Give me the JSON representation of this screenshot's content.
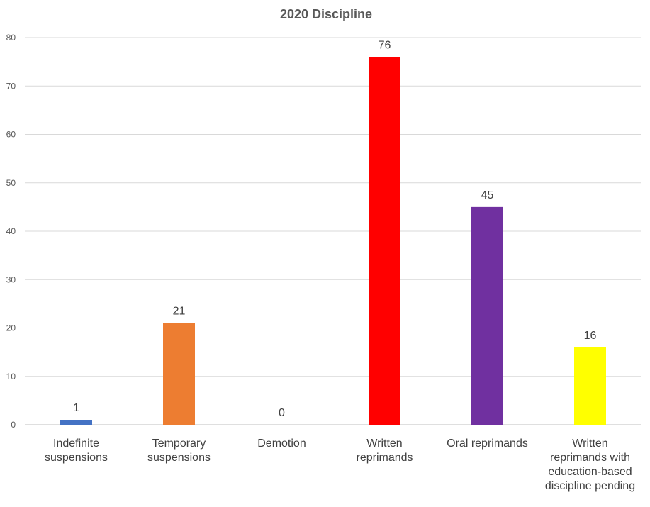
{
  "chart_data": {
    "type": "bar",
    "title": "2020 Discipline",
    "xlabel": "",
    "ylabel": "",
    "ylim": [
      0,
      80
    ],
    "yticks": [
      0,
      10,
      20,
      30,
      40,
      50,
      60,
      70,
      80
    ],
    "grid": true,
    "legend": "none",
    "categories": [
      [
        "Indefinite",
        "suspensions"
      ],
      [
        "Temporary",
        "suspensions"
      ],
      [
        "Demotion"
      ],
      [
        "Written",
        "reprimands"
      ],
      [
        "Oral reprimands"
      ],
      [
        "Written",
        "reprimands with",
        "education-based",
        "discipline pending"
      ]
    ],
    "values": [
      1,
      21,
      0,
      76,
      45,
      16
    ],
    "colors": [
      "#4472C4",
      "#ED7D31",
      "#A5A5A5",
      "#FF0000",
      "#7030A0",
      "#FFFF00"
    ]
  }
}
